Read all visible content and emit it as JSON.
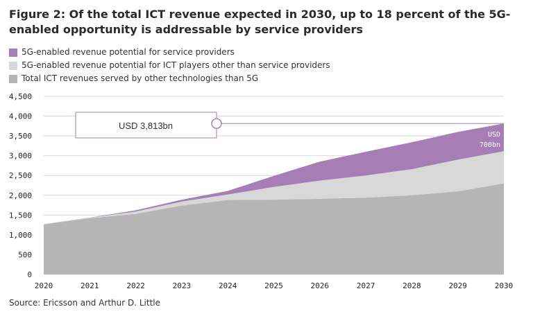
{
  "title": "Figure 2: Of the total ICT revenue expected in 2030, up to 18 percent of the 5G-enabled opportunity is addressable by service providers",
  "source": "Source: Ericsson and Arthur D. Little",
  "colors": {
    "sp": "#a77db6",
    "ict": "#d8d8d8",
    "base": "#b5b5b5",
    "callout_border": "#a77db6",
    "grid": "#d9d9d9"
  },
  "chart_data": {
    "type": "area",
    "stacked": true,
    "x": [
      "2020",
      "2021",
      "2022",
      "2023",
      "2024",
      "2025",
      "2026",
      "2027",
      "2028",
      "2029",
      "2030"
    ],
    "ylim": [
      0,
      4500
    ],
    "yticks": [
      "0",
      "500",
      "1,000",
      "1,500",
      "2,000",
      "2,500",
      "3,000",
      "3,500",
      "4,000",
      "4,500"
    ],
    "ytick_values": [
      0,
      500,
      1000,
      1500,
      2000,
      2500,
      3000,
      3500,
      4000,
      4500
    ],
    "grid": "horizontal",
    "legend_position": "top",
    "series": [
      {
        "key": "base",
        "name": "Total ICT revenues served by other technologies than 5G",
        "values": [
          1270,
          1420,
          1530,
          1740,
          1880,
          1890,
          1910,
          1940,
          2000,
          2100,
          2300
        ]
      },
      {
        "key": "ict",
        "name": "5G-enabled revenue potential for ICT players other than service providers",
        "values": [
          0,
          10,
          60,
          100,
          140,
          320,
          460,
          560,
          660,
          800,
          813
        ]
      },
      {
        "key": "sp",
        "name": "5G-enabled revenue potential for service providers",
        "values": [
          0,
          5,
          30,
          50,
          90,
          280,
          480,
          600,
          680,
          700,
          700
        ]
      }
    ],
    "annotations": {
      "callout": "USD 3,813bn",
      "end_label_line1": "USD",
      "end_label_line2": "700bn"
    }
  },
  "legend_items": [
    {
      "label": "5G-enabled revenue potential for service providers",
      "color": "#a77db6"
    },
    {
      "label": "5G-enabled revenue potential for ICT players other than service providers",
      "color": "#d8d8d8"
    },
    {
      "label": "Total ICT revenues served by other technologies than 5G",
      "color": "#b5b5b5"
    }
  ]
}
